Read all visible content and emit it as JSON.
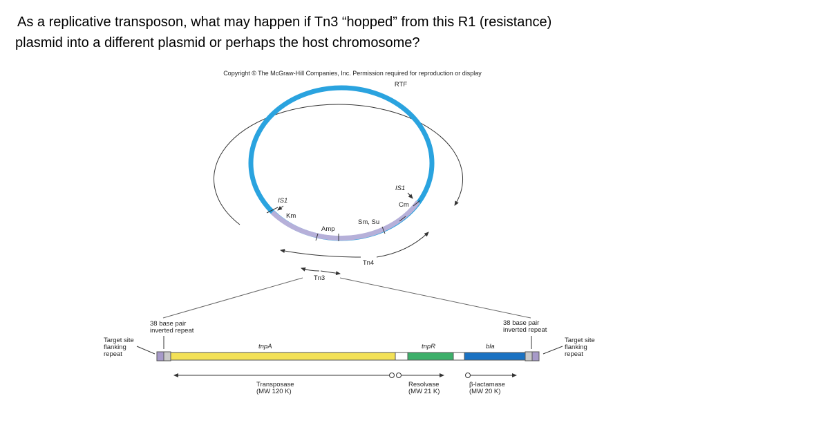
{
  "question": {
    "lines": [
      "As a replicative transposon, what may happen if Tn3 “hopped” from this R1 (resistance)",
      "plasmid into a different plasmid or perhaps the host chromosome?"
    ]
  },
  "figure": {
    "copyright": "Copyright © The McGraw-Hill Companies, Inc. Permission required for reproduction or display",
    "plasmid": {
      "rtf": "RTF",
      "is1_left": "IS1",
      "km": "Km",
      "amp": "Amp",
      "sm_su": "Sm, Su",
      "is1_right": "IS1",
      "cm": "Cm",
      "tn4": "Tn4",
      "tn3": "Tn3"
    },
    "transposon": {
      "left_repeat": {
        "lines": [
          "38 base pair",
          "inverted repeat"
        ]
      },
      "right_repeat": {
        "lines": [
          "38 base pair",
          "inverted repeat"
        ]
      },
      "left_target": {
        "lines": [
          "Target site",
          "flanking",
          "repeat"
        ]
      },
      "right_target": {
        "lines": [
          "Target site",
          "flanking",
          "repeat"
        ]
      },
      "genes": [
        "tnpA",
        "tnpR",
        "bla"
      ],
      "products": [
        {
          "lines": [
            "Transposase",
            "(MW 120 K)"
          ]
        },
        {
          "lines": [
            "Resolvase",
            "(MW 21 K)"
          ]
        },
        {
          "lines": [
            "β-lactamase",
            "(MW 20 K)"
          ]
        }
      ]
    }
  }
}
